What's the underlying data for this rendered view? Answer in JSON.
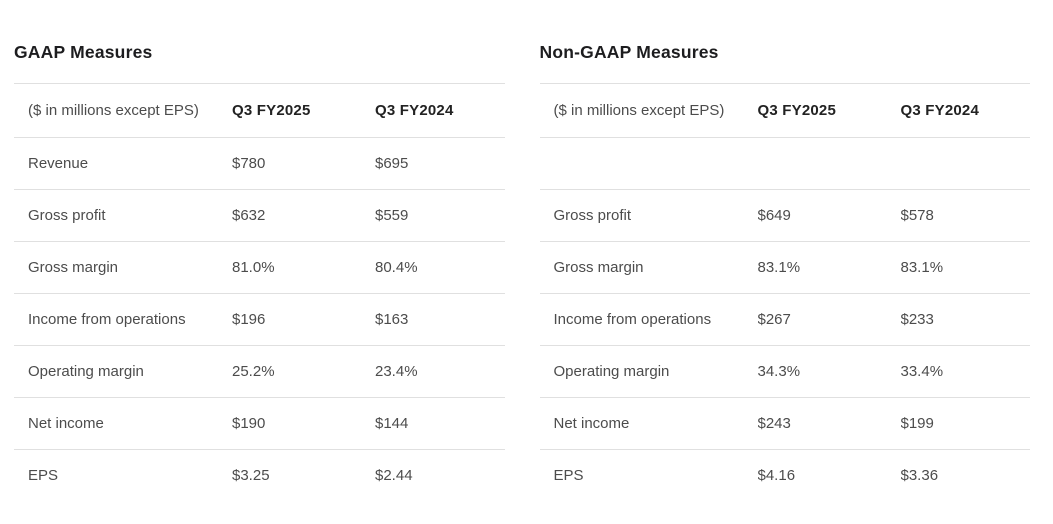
{
  "colors": {
    "background": "#ffffff",
    "divider": "#e0e0e0",
    "title_text": "#1d1d1f",
    "header_text": "#222222",
    "body_text": "#4c4c4c"
  },
  "tables": [
    {
      "title": "GAAP Measures",
      "unit_note": "($ in millions except EPS)",
      "columns": [
        "Q3 FY2025",
        "Q3 FY2024"
      ],
      "rows": [
        {
          "label": "Revenue",
          "fy2025": "$780",
          "fy2024": "$695"
        },
        {
          "label": "Gross profit",
          "fy2025": "$632",
          "fy2024": "$559"
        },
        {
          "label": "Gross margin",
          "fy2025": "81.0%",
          "fy2024": "80.4%"
        },
        {
          "label": "Income from operations",
          "fy2025": "$196",
          "fy2024": "$163"
        },
        {
          "label": "Operating margin",
          "fy2025": "25.2%",
          "fy2024": "23.4%"
        },
        {
          "label": "Net income",
          "fy2025": "$190",
          "fy2024": "$144"
        },
        {
          "label": "EPS",
          "fy2025": "$3.25",
          "fy2024": "$2.44"
        }
      ]
    },
    {
      "title": "Non-GAAP Measures",
      "unit_note": "($ in millions except EPS)",
      "columns": [
        "Q3 FY2025",
        "Q3 FY2024"
      ],
      "rows": [
        {
          "label": "",
          "fy2025": "",
          "fy2024": ""
        },
        {
          "label": "Gross profit",
          "fy2025": "$649",
          "fy2024": "$578"
        },
        {
          "label": "Gross margin",
          "fy2025": "83.1%",
          "fy2024": "83.1%"
        },
        {
          "label": "Income from operations",
          "fy2025": "$267",
          "fy2024": "$233"
        },
        {
          "label": "Operating margin",
          "fy2025": "34.3%",
          "fy2024": "33.4%"
        },
        {
          "label": "Net income",
          "fy2025": "$243",
          "fy2024": "$199"
        },
        {
          "label": "EPS",
          "fy2025": "$4.16",
          "fy2024": "$3.36"
        }
      ]
    }
  ]
}
